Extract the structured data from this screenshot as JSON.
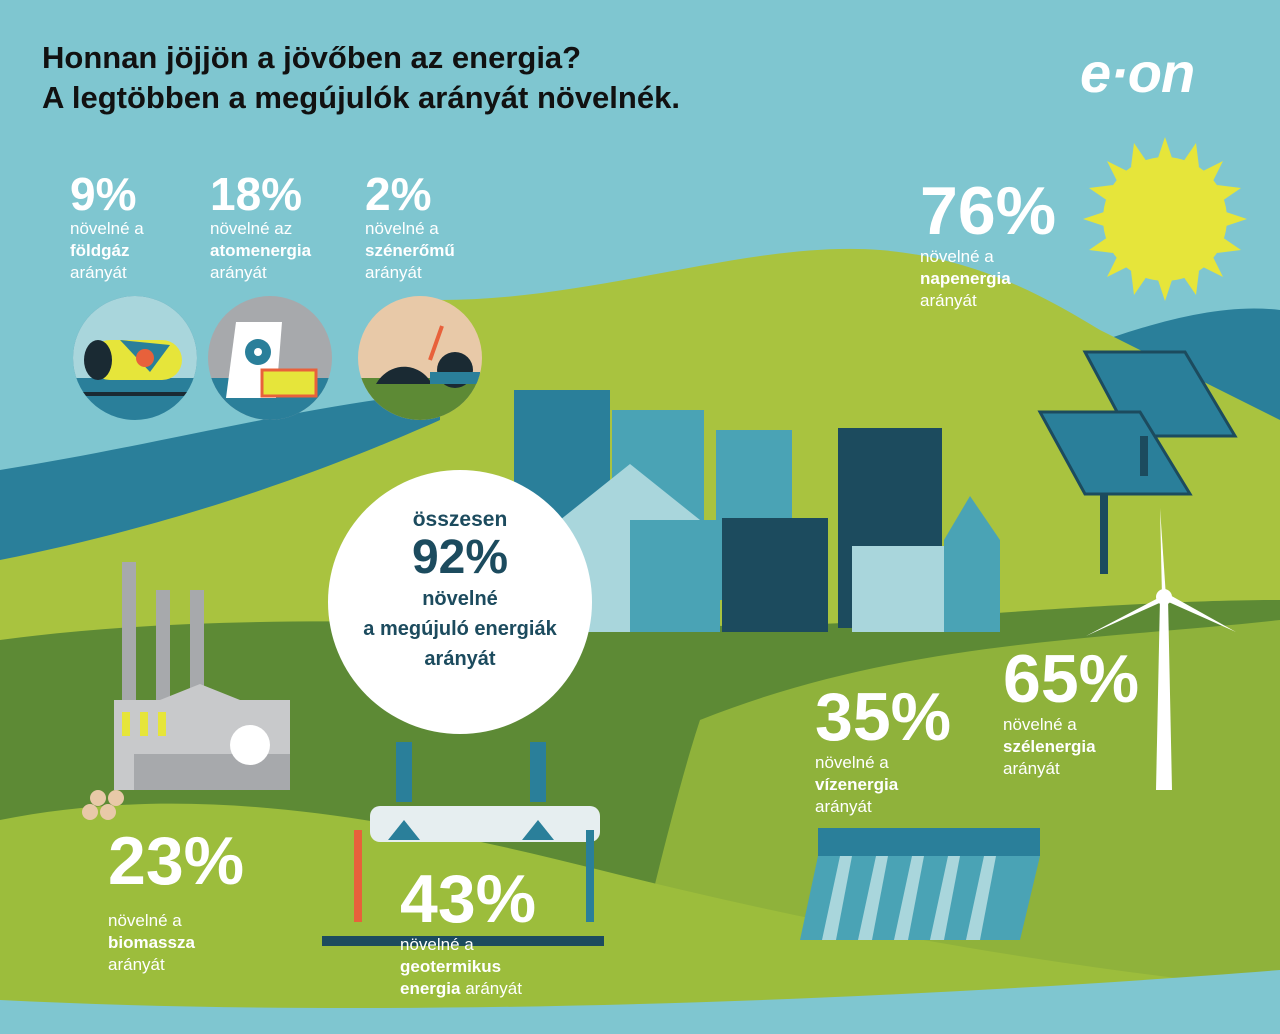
{
  "header": {
    "title_line1": "Honnan jöjjön a jövőben az energia?",
    "title_line2": "A legtöbben a megújulók arányát növelnék.",
    "logo": "e·on"
  },
  "colors": {
    "sky": "#7fc6d0",
    "dark_teal": "#2a6f8a",
    "navy": "#1c4b5e",
    "light_green": "#a9c33f",
    "dark_green": "#5d8a35",
    "sun": "#e6e53a",
    "white": "#ffffff"
  },
  "stats": {
    "foldgaz": {
      "value": "9%",
      "line1": "növelné a",
      "line2": "földgáz",
      "line3": "arányát"
    },
    "atom": {
      "value": "18%",
      "line1": "növelné az",
      "line2": "atomenergia",
      "line3": "arányát"
    },
    "szen": {
      "value": "2%",
      "line1": "növelné a",
      "line2": "szénerőmű",
      "line3": "arányát"
    },
    "nap": {
      "value": "76%",
      "line1": "növelné a",
      "line2": "napenergia",
      "line3": "arányát"
    },
    "szel": {
      "value": "65%",
      "line1": "növelné a",
      "line2": "szélenergia",
      "line3": "arányát"
    },
    "viz": {
      "value": "35%",
      "line1": "növelné a",
      "line2": "vízenergia",
      "line3": "arányát"
    },
    "biomassza": {
      "value": "23%",
      "line1": "növelné a",
      "line2": "biomassza",
      "line3": "arányát"
    },
    "geotermikus": {
      "value": "43%",
      "line1": "növelné a",
      "line2": "geotermikus",
      "line3a": "energia",
      "line3b": "arányát"
    }
  },
  "center": {
    "line1": "összesen",
    "value": "92%",
    "line2": "növelné",
    "line3": "a megújuló energiák",
    "line4": "arányát"
  },
  "icons": [
    "gas-tank-icon",
    "nuclear-plant-icon",
    "coal-icon",
    "sun-icon",
    "solar-panel-icon",
    "city-icon",
    "wind-turbine-icon",
    "hydro-dam-icon",
    "biomass-factory-icon",
    "geothermal-plant-icon"
  ]
}
